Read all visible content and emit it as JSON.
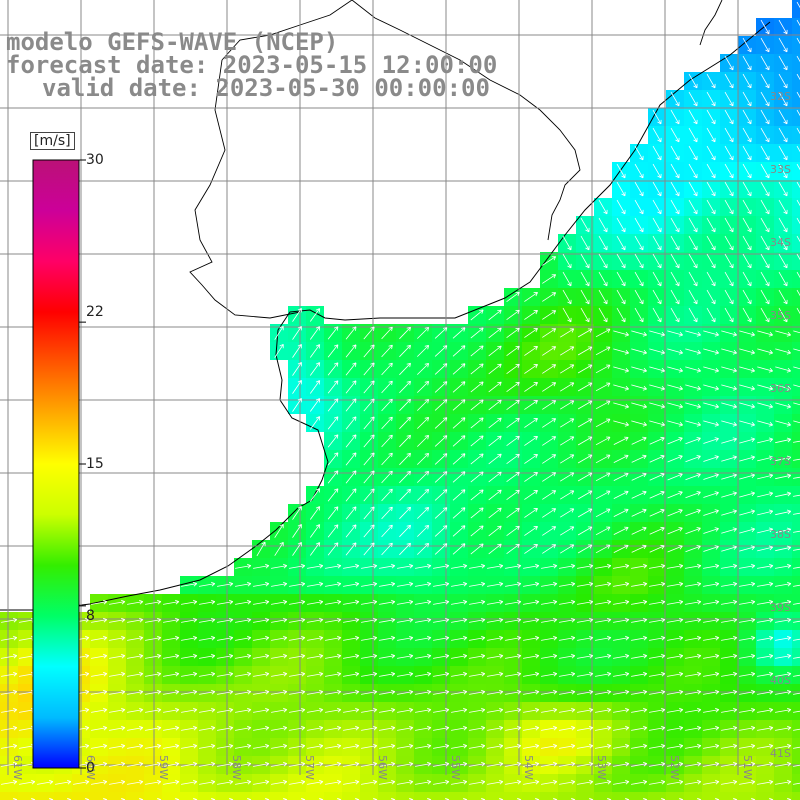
{
  "titles": {
    "model": "modelo GEFS-WAVE (NCEP)",
    "forecast": "forecast date: 2023-05-15 12:00:00",
    "valid": "valid date: 2023-05-30 00:00:00"
  },
  "legend": {
    "unit": "[m/s]",
    "min": 0,
    "max": 30,
    "ticks": [
      "30",
      "22",
      "15",
      "8",
      "0"
    ],
    "tick_values": [
      30,
      22,
      15,
      8,
      0
    ],
    "gradient_colors": [
      "#0000ff",
      "#00bbff",
      "#00ffff",
      "#00ff66",
      "#33ee00",
      "#ccff00",
      "#ffff00",
      "#ffaa00",
      "#ff5500",
      "#ff0000",
      "#ff0066",
      "#cc0099",
      "#bb1177"
    ]
  },
  "chart_data": {
    "type": "heatmap",
    "variable": "wind speed",
    "unit": "m/s",
    "lon_labels": [
      "61W",
      "60W",
      "59W",
      "58W",
      "57W",
      "56W",
      "55W",
      "54W",
      "53W",
      "52W",
      "51W"
    ],
    "lat_labels": [
      "32S",
      "33S",
      "34S",
      "35S",
      "36S",
      "37S",
      "38S",
      "39S",
      "40S",
      "41S"
    ],
    "lon_range": [
      -61,
      -50
    ],
    "lat_range": [
      -41,
      -31
    ]
  }
}
